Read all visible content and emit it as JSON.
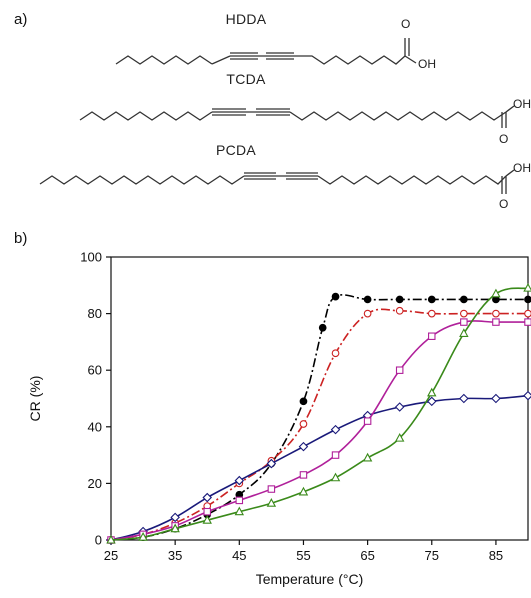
{
  "panel_a_label": "a)",
  "panel_b_label": "b)",
  "molecules": [
    {
      "name": "HDDA",
      "oxygen": "O",
      "hydroxyl": "OH"
    },
    {
      "name": "TCDA",
      "oxygen": "O",
      "hydroxyl": "OH"
    },
    {
      "name": "PCDA",
      "oxygen": "O",
      "hydroxyl": "OH"
    }
  ],
  "chart_data": {
    "type": "line",
    "title": "",
    "xlabel": "Temperature (°C)",
    "ylabel": "CR (%)",
    "xlim": [
      25,
      90
    ],
    "ylim": [
      0,
      100
    ],
    "x_ticks": [
      25,
      35,
      45,
      55,
      65,
      75,
      85
    ],
    "y_ticks": [
      0,
      20,
      40,
      60,
      80,
      100
    ],
    "grid": false,
    "legend": "none",
    "series": [
      {
        "color": "#000000",
        "line_style": "dash-dot",
        "marker": "filled-circle",
        "x": [
          25,
          30,
          35,
          40,
          45,
          50,
          55,
          58,
          60,
          65,
          70,
          75,
          80,
          85,
          90
        ],
        "y": [
          0,
          1,
          4,
          9,
          16,
          27,
          49,
          75,
          86,
          85,
          85,
          85,
          85,
          85,
          85
        ]
      },
      {
        "color": "#cc2222",
        "line_style": "dash-dot",
        "marker": "open-circle",
        "x": [
          25,
          30,
          35,
          40,
          45,
          50,
          55,
          60,
          65,
          70,
          75,
          80,
          85,
          90
        ],
        "y": [
          0,
          2,
          6,
          12,
          20,
          28,
          41,
          66,
          80,
          81,
          80,
          80,
          80,
          80
        ]
      },
      {
        "color": "#1a1a7a",
        "line_style": "solid",
        "marker": "open-diamond",
        "x": [
          25,
          30,
          35,
          40,
          45,
          50,
          55,
          60,
          65,
          70,
          75,
          80,
          85,
          90
        ],
        "y": [
          0,
          3,
          8,
          15,
          21,
          27,
          33,
          39,
          44,
          47,
          49,
          50,
          50,
          51
        ]
      },
      {
        "color": "#b0209a",
        "line_style": "solid",
        "marker": "open-square",
        "x": [
          25,
          30,
          35,
          40,
          45,
          50,
          55,
          60,
          65,
          70,
          75,
          80,
          85,
          90
        ],
        "y": [
          0,
          2,
          5,
          10,
          14,
          18,
          23,
          30,
          42,
          60,
          72,
          77,
          77,
          77
        ]
      },
      {
        "color": "#3a8a1a",
        "line_style": "solid",
        "marker": "open-triangle",
        "x": [
          25,
          30,
          35,
          40,
          45,
          50,
          55,
          60,
          65,
          70,
          75,
          80,
          85,
          90
        ],
        "y": [
          0,
          1,
          4,
          7,
          10,
          13,
          17,
          22,
          29,
          36,
          52,
          73,
          87,
          89
        ]
      }
    ]
  }
}
